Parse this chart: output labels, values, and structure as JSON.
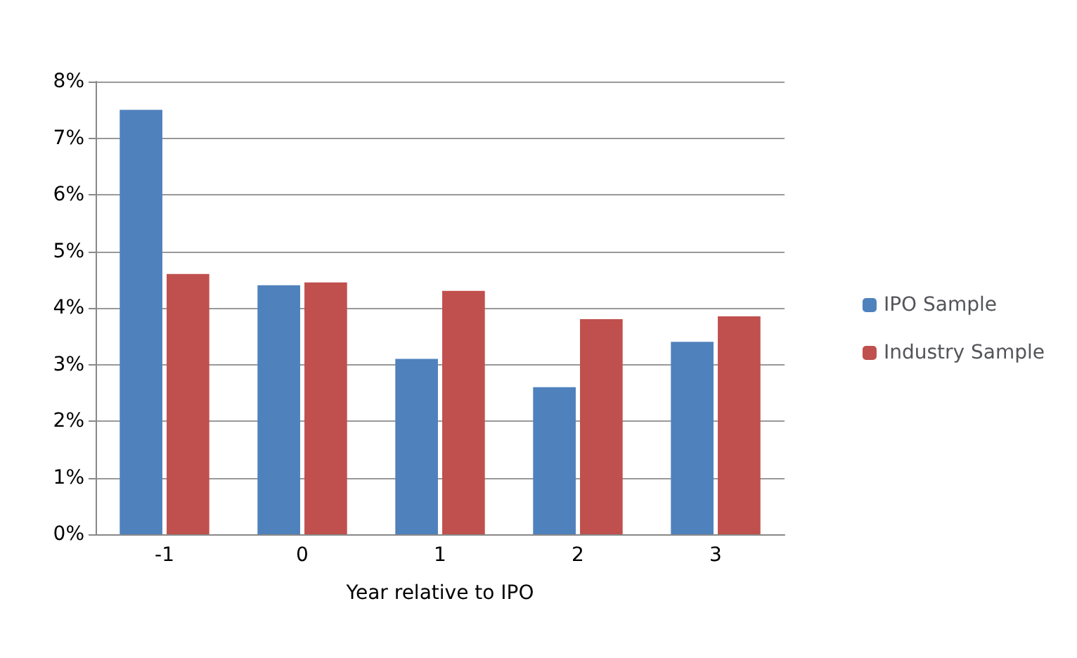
{
  "chart_data": {
    "type": "bar",
    "xlabel": "Year relative to IPO",
    "categories": [
      "-1",
      "0",
      "1",
      "2",
      "3"
    ],
    "series": [
      {
        "name": "IPO Sample",
        "color": "#4f81bd",
        "values": [
          7.5,
          4.4,
          3.1,
          2.6,
          3.4
        ]
      },
      {
        "name": "Industry Sample",
        "color": "#c0504d",
        "values": [
          4.6,
          4.45,
          4.3,
          3.8,
          3.85
        ]
      }
    ],
    "ylim": [
      0,
      8
    ],
    "yticks": [
      {
        "value": 0,
        "label": "0%"
      },
      {
        "value": 1,
        "label": "1%"
      },
      {
        "value": 2,
        "label": "2%"
      },
      {
        "value": 3,
        "label": "3%"
      },
      {
        "value": 4,
        "label": "4%"
      },
      {
        "value": 5,
        "label": "5%"
      },
      {
        "value": 6,
        "label": "6%"
      },
      {
        "value": 7,
        "label": "7%"
      },
      {
        "value": 8,
        "label": "8%"
      }
    ],
    "grid": "y",
    "legend": "right"
  }
}
